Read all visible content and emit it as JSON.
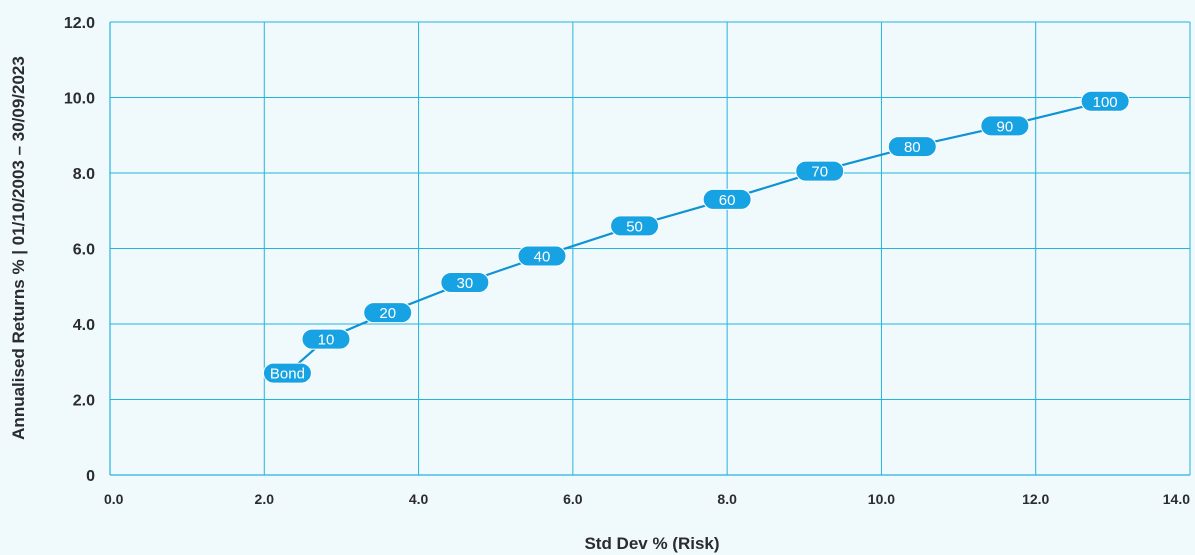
{
  "chart_data": {
    "type": "line",
    "title": "",
    "xlabel": "Std Dev % (Risk)",
    "ylabel": "Annualised Returns % | 01/10/2003 – 30/09/2023",
    "xlim": [
      0,
      14
    ],
    "ylim": [
      0,
      12
    ],
    "x_ticks": [
      "0.0",
      "2.0",
      "4.0",
      "6.0",
      "8.0",
      "10.0",
      "12.0",
      "14.0"
    ],
    "y_ticks": [
      "0",
      "2.0",
      "4.0",
      "6.0",
      "8.0",
      "10.0",
      "12.0"
    ],
    "grid": true,
    "legend": "none",
    "series": [
      {
        "points": [
          {
            "label": "Bond",
            "x": 2.3,
            "y": 2.7
          },
          {
            "label": "10",
            "x": 2.8,
            "y": 3.6
          },
          {
            "label": "20",
            "x": 3.6,
            "y": 4.3
          },
          {
            "label": "30",
            "x": 4.6,
            "y": 5.1
          },
          {
            "label": "40",
            "x": 5.6,
            "y": 5.8
          },
          {
            "label": "50",
            "x": 6.8,
            "y": 6.6
          },
          {
            "label": "60",
            "x": 8.0,
            "y": 7.3
          },
          {
            "label": "70",
            "x": 9.2,
            "y": 8.05
          },
          {
            "label": "80",
            "x": 10.4,
            "y": 8.7
          },
          {
            "label": "90",
            "x": 11.6,
            "y": 9.25
          },
          {
            "label": "100",
            "x": 12.9,
            "y": 9.9
          }
        ]
      }
    ],
    "colors": {
      "background": "#f0fafd",
      "grid": "#23b3de",
      "line": "#0f93d3",
      "marker": "#17a3e3",
      "marker_text": "#ffffff",
      "text": "#2b2b33"
    }
  }
}
